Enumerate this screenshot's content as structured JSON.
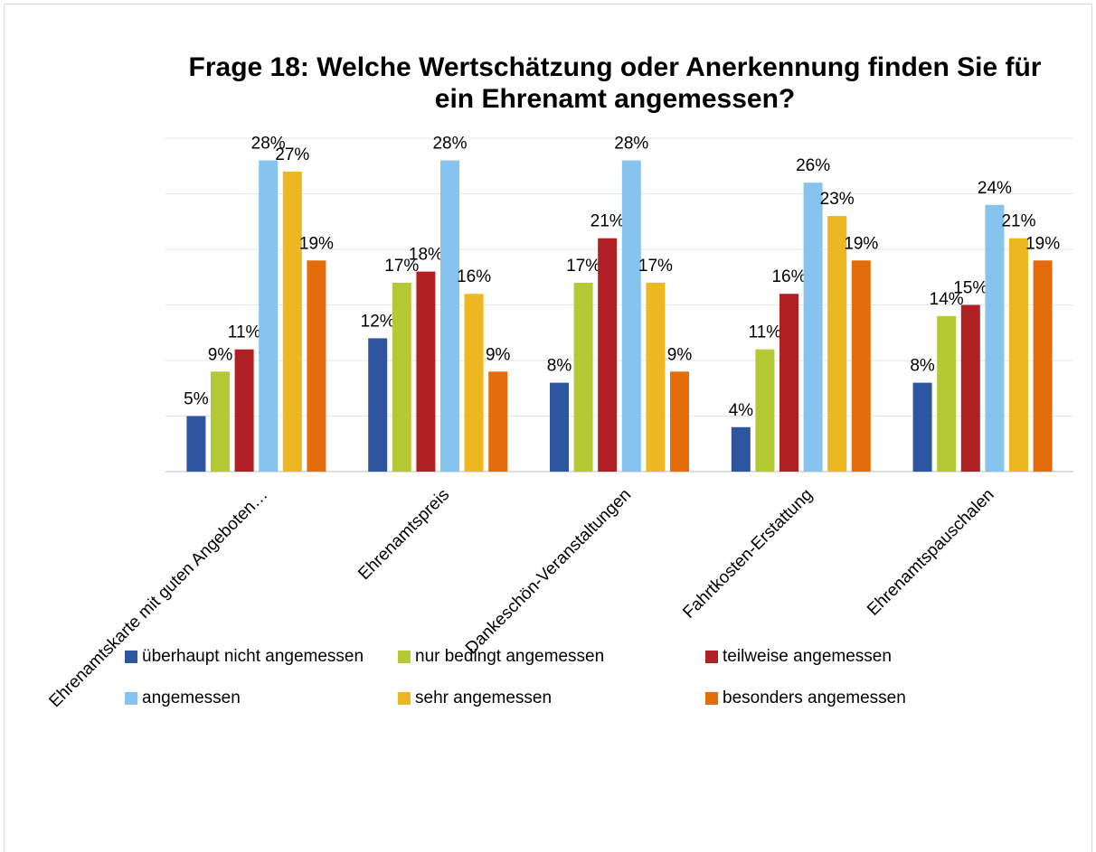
{
  "chart_data": {
    "type": "bar",
    "title": [
      "Frage 18: Welche Wertschätzung oder Anerkennung finden Sie für",
      "ein Ehrenamt angemessen?"
    ],
    "categories": [
      "Ehrenamtskarte mit guten Angeboten…",
      "Ehrenamtspreis",
      "Dankeschön-Veranstaltungen",
      "Fahrtkosten-Erstattung",
      "Ehrenamtspauschalen"
    ],
    "series": [
      {
        "name": "überhaupt nicht angemessen",
        "color": "#2e55a0",
        "values": [
          5,
          12,
          8,
          4,
          8
        ],
        "value_labels": [
          "5%",
          "12%",
          "8%",
          "4%",
          "8%"
        ]
      },
      {
        "name": "nur bedingt angemessen",
        "color": "#b5c934",
        "values": [
          9,
          17,
          17,
          11,
          14
        ],
        "value_labels": [
          "9%",
          "17%",
          "17%",
          "11%",
          "14%"
        ]
      },
      {
        "name": "teilweise angemessen",
        "color": "#b01f24",
        "values": [
          11,
          18,
          21,
          16,
          15
        ],
        "value_labels": [
          "11%",
          "18%",
          "21%",
          "16%",
          "15%"
        ]
      },
      {
        "name": "angemessen",
        "color": "#86c4ef",
        "values": [
          28,
          28,
          28,
          26,
          24
        ],
        "value_labels": [
          "28%",
          "28%",
          "28%",
          "26%",
          "24%"
        ]
      },
      {
        "name": "sehr angemessen",
        "color": "#ecb720",
        "values": [
          27,
          16,
          17,
          23,
          21
        ],
        "value_labels": [
          "27%",
          "16%",
          "17%",
          "23%",
          "21%"
        ]
      },
      {
        "name": "besonders angemessen",
        "color": "#e46c0a",
        "values": [
          19,
          9,
          9,
          19,
          19
        ],
        "value_labels": [
          "19%",
          "9%",
          "9%",
          "19%",
          "19%"
        ]
      }
    ],
    "ylim": [
      0,
      30
    ],
    "yticks": [
      0,
      5,
      10,
      15,
      20,
      25,
      30
    ],
    "grid": true,
    "legend": "bottom"
  }
}
